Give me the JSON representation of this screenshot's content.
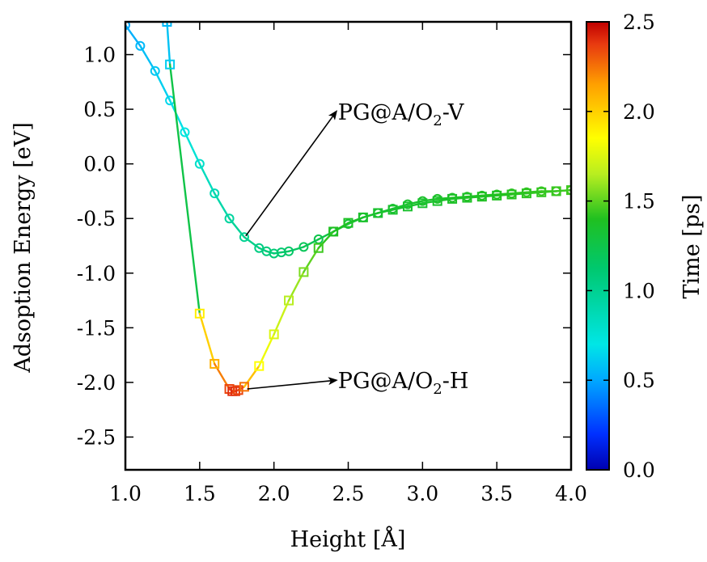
{
  "chart_data": {
    "type": "line",
    "xlabel": "Height [Å]",
    "ylabel": "Adsoption Energy [eV]",
    "xlim": [
      1.0,
      4.0
    ],
    "ylim": [
      -2.8,
      1.3
    ],
    "x_ticks": [
      "1.0",
      "1.5",
      "2.0",
      "2.5",
      "3.0",
      "3.5",
      "4.0"
    ],
    "y_ticks": [
      "1.0",
      "0.5",
      "0.0",
      "-0.5",
      "-1.0",
      "-1.5",
      "-2.0",
      "-2.5"
    ],
    "colorbar": {
      "label": "Time [ps]",
      "range": [
        0.0,
        2.5
      ],
      "ticks": [
        "0.0",
        "0.5",
        "1.0",
        "1.5",
        "2.0",
        "2.5"
      ]
    },
    "series": [
      {
        "marker": "circle",
        "points": [
          {
            "x": 1.0,
            "y": 1.27,
            "t": 0.5
          },
          {
            "x": 1.1,
            "y": 1.08,
            "t": 0.55
          },
          {
            "x": 1.2,
            "y": 0.85,
            "t": 0.6
          },
          {
            "x": 1.3,
            "y": 0.58,
            "t": 0.65
          },
          {
            "x": 1.4,
            "y": 0.29,
            "t": 0.72
          },
          {
            "x": 1.5,
            "y": 0.0,
            "t": 0.8
          },
          {
            "x": 1.6,
            "y": -0.27,
            "t": 0.88
          },
          {
            "x": 1.7,
            "y": -0.5,
            "t": 0.95
          },
          {
            "x": 1.8,
            "y": -0.67,
            "t": 1.0
          },
          {
            "x": 1.9,
            "y": -0.77,
            "t": 1.05
          },
          {
            "x": 1.95,
            "y": -0.8,
            "t": 1.08
          },
          {
            "x": 2.0,
            "y": -0.82,
            "t": 1.1
          },
          {
            "x": 2.05,
            "y": -0.81,
            "t": 1.12
          },
          {
            "x": 2.1,
            "y": -0.8,
            "t": 1.15
          },
          {
            "x": 2.2,
            "y": -0.76,
            "t": 1.2
          },
          {
            "x": 2.3,
            "y": -0.69,
            "t": 1.25
          },
          {
            "x": 2.4,
            "y": -0.62,
            "t": 1.28
          },
          {
            "x": 2.5,
            "y": -0.55,
            "t": 1.3
          },
          {
            "x": 2.6,
            "y": -0.49,
            "t": 1.32
          },
          {
            "x": 2.7,
            "y": -0.45,
            "t": 1.33
          },
          {
            "x": 2.8,
            "y": -0.41,
            "t": 1.34
          },
          {
            "x": 2.9,
            "y": -0.37,
            "t": 1.35
          },
          {
            "x": 3.0,
            "y": -0.34,
            "t": 1.36
          },
          {
            "x": 3.1,
            "y": -0.32,
            "t": 1.37
          },
          {
            "x": 3.2,
            "y": -0.31,
            "t": 1.38
          },
          {
            "x": 3.3,
            "y": -0.3,
            "t": 1.39
          },
          {
            "x": 3.4,
            "y": -0.29,
            "t": 1.4
          },
          {
            "x": 3.5,
            "y": -0.28,
            "t": 1.41
          },
          {
            "x": 3.6,
            "y": -0.27,
            "t": 1.42
          },
          {
            "x": 3.7,
            "y": -0.26,
            "t": 1.43
          },
          {
            "x": 3.8,
            "y": -0.25,
            "t": 1.44
          },
          {
            "x": 3.9,
            "y": -0.25,
            "t": 1.45
          },
          {
            "x": 4.0,
            "y": -0.24,
            "t": 1.46
          }
        ]
      },
      {
        "marker": "square",
        "points": [
          {
            "x": 1.28,
            "y": 1.3,
            "t": 0.55
          },
          {
            "x": 1.3,
            "y": 0.91,
            "t": 0.62
          },
          {
            "x": 1.5,
            "y": -1.37,
            "t": 1.9
          },
          {
            "x": 1.6,
            "y": -1.83,
            "t": 2.1
          },
          {
            "x": 1.7,
            "y": -2.06,
            "t": 2.35
          },
          {
            "x": 1.72,
            "y": -2.08,
            "t": 2.4
          },
          {
            "x": 1.74,
            "y": -2.08,
            "t": 2.4
          },
          {
            "x": 1.76,
            "y": -2.07,
            "t": 2.35
          },
          {
            "x": 1.8,
            "y": -2.04,
            "t": 2.25
          },
          {
            "x": 1.9,
            "y": -1.85,
            "t": 1.85
          },
          {
            "x": 2.0,
            "y": -1.56,
            "t": 1.75
          },
          {
            "x": 2.1,
            "y": -1.25,
            "t": 1.65
          },
          {
            "x": 2.2,
            "y": -0.99,
            "t": 1.55
          },
          {
            "x": 2.3,
            "y": -0.77,
            "t": 1.45
          },
          {
            "x": 2.4,
            "y": -0.62,
            "t": 1.4
          },
          {
            "x": 2.5,
            "y": -0.54,
            "t": 1.38
          },
          {
            "x": 2.6,
            "y": -0.49,
            "t": 1.36
          },
          {
            "x": 2.7,
            "y": -0.45,
            "t": 1.35
          },
          {
            "x": 2.8,
            "y": -0.42,
            "t": 1.35
          },
          {
            "x": 2.9,
            "y": -0.39,
            "t": 1.35
          },
          {
            "x": 3.0,
            "y": -0.36,
            "t": 1.35
          },
          {
            "x": 3.1,
            "y": -0.34,
            "t": 1.36
          },
          {
            "x": 3.2,
            "y": -0.32,
            "t": 1.37
          },
          {
            "x": 3.3,
            "y": -0.31,
            "t": 1.38
          },
          {
            "x": 3.4,
            "y": -0.3,
            "t": 1.39
          },
          {
            "x": 3.5,
            "y": -0.29,
            "t": 1.4
          },
          {
            "x": 3.6,
            "y": -0.28,
            "t": 1.41
          },
          {
            "x": 3.7,
            "y": -0.27,
            "t": 1.42
          },
          {
            "x": 3.8,
            "y": -0.26,
            "t": 1.43
          },
          {
            "x": 3.9,
            "y": -0.25,
            "t": 1.44
          },
          {
            "x": 4.0,
            "y": -0.24,
            "t": 1.45
          }
        ]
      }
    ],
    "annotations": [
      {
        "text": "PG@A/O",
        "sub": "2",
        "suffix": "-V",
        "from": {
          "x": 1.81,
          "y": -0.66
        },
        "to": {
          "x": 2.42,
          "y": 0.48
        }
      },
      {
        "text": "PG@A/O",
        "sub": "2",
        "suffix": "-H",
        "from": {
          "x": 1.82,
          "y": -2.06
        },
        "to": {
          "x": 2.42,
          "y": -1.98
        }
      }
    ]
  }
}
